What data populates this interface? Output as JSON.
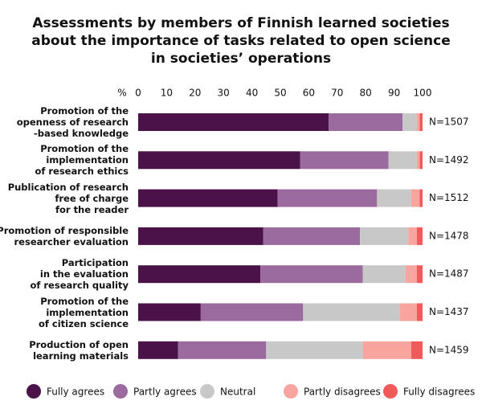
{
  "chart_data": {
    "type": "stacked-barh",
    "title": "Assessments by members of Finnish learned societies\nabout the importance of tasks related to open science\nin societies’ operations",
    "x_label": "%",
    "categories": [
      "Promotion of the\nopenness of research\n-based knowledge",
      "Promotion of the\nimplementation\nof research ethics",
      "Publication of research\nfree of charge\nfor the reader",
      "Promotion of responsible\nresearcher evaluation",
      "Participation\nin the evaluation\nof research quality",
      "Promotion of the\nimplementation\nof citizen science",
      "Production of open\nlearning materials"
    ],
    "annotations": [
      "N=1507",
      "N=1492",
      "N=1512",
      "N=1478",
      "N=1487",
      "N=1437",
      "N=1459"
    ],
    "series": [
      {
        "name": "Fully agrees",
        "color": "#4a1248",
        "values": [
          67,
          57,
          49,
          44,
          43,
          22,
          14
        ]
      },
      {
        "name": "Partly agrees",
        "color": "#9b6a9e",
        "values": [
          26,
          31,
          35,
          34,
          36,
          36,
          31
        ]
      },
      {
        "name": "Neutral",
        "color": "#c8c8c8",
        "values": [
          5,
          10,
          12,
          17,
          15,
          34,
          34
        ]
      },
      {
        "name": "Partly disagrees",
        "color": "#f7a59e",
        "values": [
          1,
          1,
          3,
          3,
          4,
          6,
          17
        ]
      },
      {
        "name": "Fully disagrees",
        "color": "#f05a5a",
        "values": [
          1,
          1,
          1,
          2,
          2,
          2,
          4
        ]
      }
    ],
    "xlim": [
      0,
      100
    ],
    "xticks": [
      0,
      10,
      20,
      30,
      40,
      50,
      60,
      70,
      80,
      90,
      100
    ],
    "legend": "bottom"
  }
}
